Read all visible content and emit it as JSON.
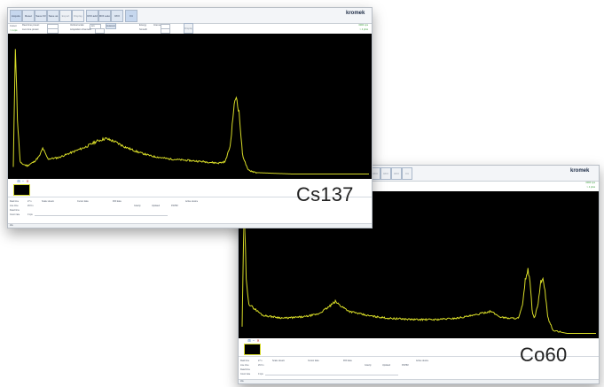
{
  "colors": {
    "trace": "#d8dc28",
    "plot_bg": "#000000",
    "accent": "#3a9c3a",
    "warn": "#c83232"
  },
  "windows": [
    {
      "id": "cs137",
      "isotope_label": "Cs137",
      "logo": "kromek",
      "logo_sub": "",
      "toolbar": [
        "Acquire\nSTOP",
        "Reset\nF2",
        "Save\nF3",
        "Save as\nF4",
        "Export\nF5",
        "Display\nF6",
        "ROI\nadd\nF7",
        "ROI auto\nF8",
        "ROI clear\nF9",
        "Fit"
      ],
      "controls": {
        "realtime_label": "Real time preset:",
        "livetime_label": "Live time preset:",
        "vscale_label": "Vertical scale:",
        "vscale_value": "Lin",
        "autoscale": "Autoscale",
        "smooth": "Smooth",
        "channels_label": "Acquisition channels:",
        "energy_label": "Energy",
        "interval_label": "Interval",
        "display_label": "Display",
        "counts_right": "0000 cps",
        "rate_right": "> 4 phot"
      },
      "left_info": [
        "Cursor",
        "> 1 cps"
      ],
      "stats_left": [
        [
          "Real time",
          "27 s"
        ],
        [
          "Live time",
          "26.6 s"
        ],
        [
          "Dead time",
          ""
        ],
        [
          "Count rate",
          "0 cps"
        ]
      ],
      "stats_cols": [
        "Scale stream",
        "Cursor data",
        "ROI data",
        "Gravity",
        "Updated",
        "FWHM",
        "Active device"
      ],
      "status_text": "Idle"
    },
    {
      "id": "co60",
      "isotope_label": "Co60",
      "logo": "kromek",
      "logo_sub": "",
      "toolbar": [
        "Acquire\nSTOP",
        "Reset\nF2",
        "Save\nF3",
        "Save as\nF4",
        "Export\nF5",
        "Display\nF6",
        "ROI\nadd\nF7",
        "ROI auto\nF8",
        "ROI clear\nF9",
        "Fit"
      ],
      "controls": {
        "counts_right": "0000 cps",
        "rate_right": "> 4 phot"
      },
      "left_info": [],
      "stats_left": [
        [
          "Real time",
          "27 s"
        ],
        [
          "Live time",
          "26.6 s"
        ],
        [
          "Dead time",
          ""
        ],
        [
          "Count rate",
          "0 cps"
        ]
      ],
      "stats_cols": [
        "Scale stream",
        "Cursor data",
        "ROI data",
        "Gravity",
        "Updated",
        "FWHM",
        "Active device"
      ],
      "status_text": "Idle"
    }
  ],
  "chart_data": [
    {
      "type": "line",
      "title": "",
      "xlabel": "",
      "ylabel": "",
      "x_range": [
        0,
        1024
      ],
      "ylim": [
        0,
        100
      ],
      "grid": false,
      "series": [
        {
          "values": [
            [
              0,
              6
            ],
            [
              6,
              97
            ],
            [
              12,
              40
            ],
            [
              20,
              9
            ],
            [
              40,
              7
            ],
            [
              60,
              10
            ],
            [
              75,
              14
            ],
            [
              85,
              20
            ],
            [
              92,
              16
            ],
            [
              100,
              12
            ],
            [
              130,
              13
            ],
            [
              170,
              17
            ],
            [
              210,
              21
            ],
            [
              240,
              25
            ],
            [
              265,
              27
            ],
            [
              290,
              25
            ],
            [
              320,
              21
            ],
            [
              360,
              17
            ],
            [
              400,
              14
            ],
            [
              450,
              12
            ],
            [
              500,
              11
            ],
            [
              550,
              10
            ],
            [
              590,
              9
            ],
            [
              610,
              10
            ],
            [
              625,
              22
            ],
            [
              635,
              50
            ],
            [
              642,
              58
            ],
            [
              650,
              46
            ],
            [
              660,
              15
            ],
            [
              675,
              4
            ],
            [
              700,
              2
            ],
            [
              800,
              1
            ],
            [
              1024,
              1
            ]
          ]
        }
      ]
    },
    {
      "type": "line",
      "title": "",
      "xlabel": "",
      "ylabel": "",
      "x_range": [
        0,
        1024
      ],
      "ylim": [
        0,
        100
      ],
      "grid": false,
      "series": [
        {
          "values": [
            [
              0,
              6
            ],
            [
              6,
              97
            ],
            [
              12,
              38
            ],
            [
              20,
              22
            ],
            [
              60,
              14
            ],
            [
              120,
              12
            ],
            [
              180,
              13
            ],
            [
              220,
              15
            ],
            [
              250,
              20
            ],
            [
              270,
              24
            ],
            [
              285,
              21
            ],
            [
              310,
              17
            ],
            [
              360,
              14
            ],
            [
              420,
              12
            ],
            [
              500,
              11
            ],
            [
              560,
              11
            ],
            [
              620,
              12
            ],
            [
              670,
              14
            ],
            [
              700,
              16
            ],
            [
              720,
              17
            ],
            [
              745,
              13
            ],
            [
              770,
              12
            ],
            [
              800,
              12
            ],
            [
              812,
              22
            ],
            [
              820,
              41
            ],
            [
              827,
              47
            ],
            [
              834,
              36
            ],
            [
              840,
              15
            ],
            [
              846,
              12
            ],
            [
              856,
              22
            ],
            [
              864,
              38
            ],
            [
              870,
              40
            ],
            [
              876,
              32
            ],
            [
              885,
              12
            ],
            [
              900,
              3
            ],
            [
              940,
              1
            ],
            [
              1024,
              1
            ]
          ]
        }
      ]
    }
  ]
}
